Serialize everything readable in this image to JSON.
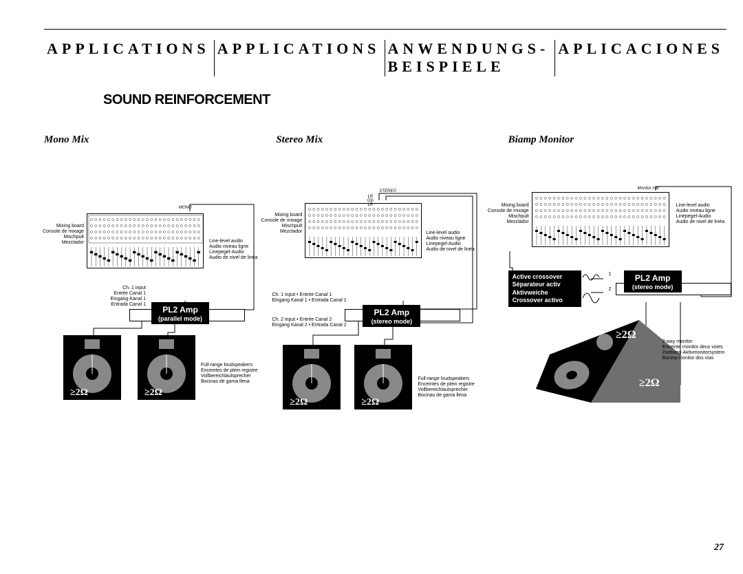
{
  "header": {
    "col1": "APPLICATIONS",
    "col2": "APPLICATIONS",
    "col3_line1": "ANWENDUNGS-",
    "col3_line2": "BEISPIELE",
    "col4": "APLICACIONES"
  },
  "section_title": "SOUND REINFORCEMENT",
  "page_number": "27",
  "impedance": "≥2Ω",
  "diagrams": {
    "mono": {
      "title": "Mono Mix",
      "mixer_out_label": "MONO",
      "mixer_labels": "Mixing board\nConsole de mixage\nMischpult\nMezclador",
      "out_labels": "Line-level audio\nAudio niveau ligne\nLinepegel-Audio\nAudio de nivel de linéa",
      "ch_labels": "Ch. 1 input\nEntrée Canal 1\nEingang Kanal 1\nEntrada Canal 1",
      "amp_label": "PL2 Amp",
      "amp_mode": "(parallel mode)",
      "speaker_labels": "Full-range loudspeakers\nEnceintes de plein registre\nVollbereichlautsprecher\nBocinas de gama llena"
    },
    "stereo": {
      "title": "Stereo Mix",
      "mixer_out_label": "STEREO",
      "stereo_ch": "LR\nGD\nLR",
      "mixer_labels": "Mixing board\nConsole de mixage\nMischpult\nMezclador",
      "out_labels": "Line-level audio\nAudio niveau ligne\nLinepegel-Audio\nAudio de nivel de linéa",
      "ch1_labels": "Ch. 1 input • Entrée Canal 1\nEingang Kanal 1 • Entrada Canal 1",
      "ch2_labels": "Ch. 2 input • Entrée Canal 2\nEingang Kanal 2 • Entrada Canal 2",
      "amp_label": "PL2 Amp",
      "amp_mode": "(stereo mode)",
      "speaker_labels": "Full-range loudspeakers\nEnceintes de plein registre\nVollbereichlautsprecher\nBocinas de gama llena"
    },
    "biamp": {
      "title": "Biamp Monitor",
      "mixer_out_label": "Monitor mix",
      "mixer_labels": "Mixing board\nConsole de mixage\nMischpult\nMezclador",
      "out_labels": "Line-level audio\nAudio niveau ligne\nLinepegel-Audio\nAudio de nivel de linéa",
      "crossover": "Active crossover\nSéparateur activ\nAktivweiche\nCrossover activo",
      "out1": "1",
      "out2": "2",
      "amp_label": "PL2 Amp",
      "amp_mode": "(stereo mode)",
      "monitor_labels": "2-way monitor\nEnceinte monitor deux voies\nZweiweg-Aktivmonitorsystem\nBocina monitor dos vías"
    }
  },
  "style": {
    "mixer": {
      "width": 170,
      "height": 80,
      "channel_count": 26,
      "knob_rows": 4
    },
    "speaker_svg": {
      "woofer_r": 28,
      "dust_r": 9,
      "tweeter_w": 22,
      "tweeter_h": 14
    },
    "colors": {
      "ink": "#000000",
      "paper": "#ffffff",
      "grey": "#888888",
      "wedge_grey": "#6f6f6f"
    }
  }
}
